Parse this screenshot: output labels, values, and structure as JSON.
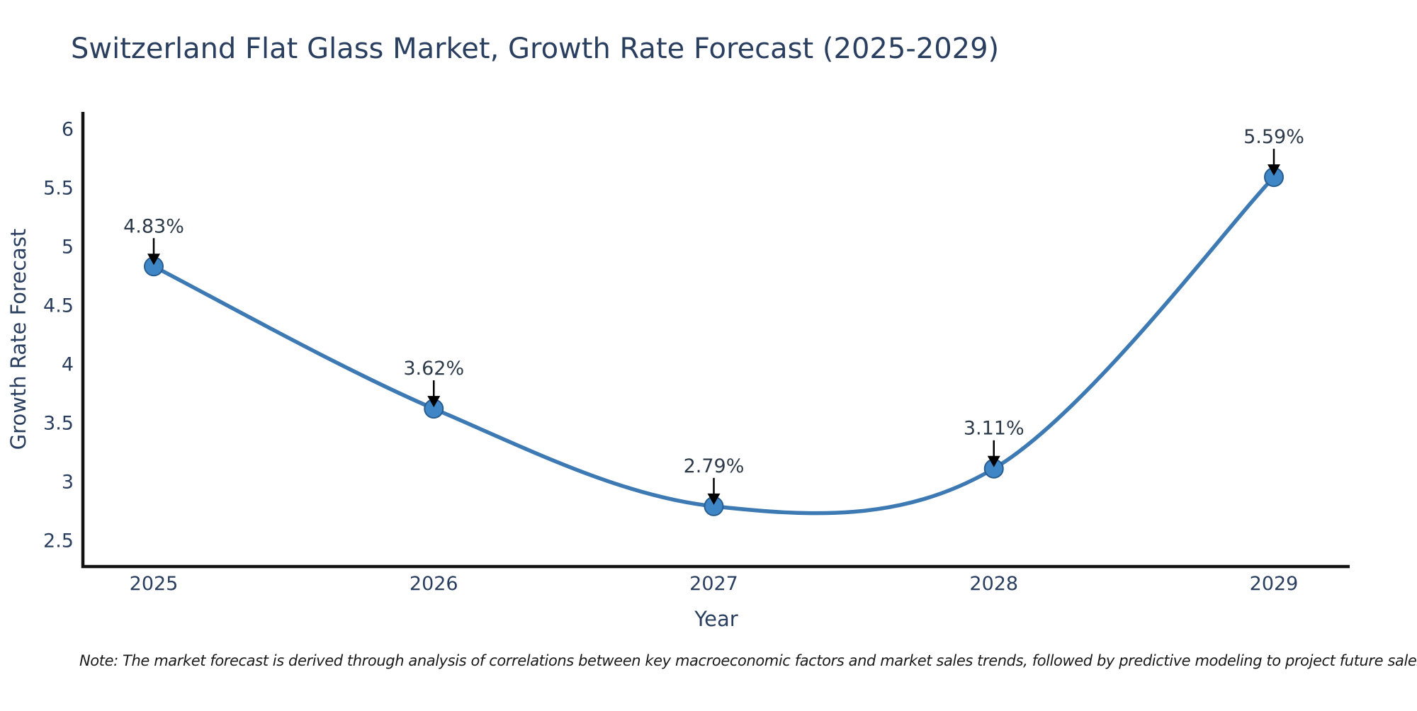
{
  "chart_data": {
    "type": "line",
    "title": "Switzerland Flat Glass Market, Growth Rate Forecast (2025-2029)",
    "xlabel": "Year",
    "ylabel": "Growth Rate Forecast",
    "categories": [
      "2025",
      "2026",
      "2027",
      "2028",
      "2029"
    ],
    "series": [
      {
        "name": "Growth Rate Forecast",
        "values": [
          4.83,
          3.62,
          2.79,
          3.11,
          5.59
        ]
      }
    ],
    "point_labels": [
      "4.83%",
      "3.62%",
      "2.79%",
      "3.11%",
      "5.59%"
    ],
    "ytick_labels": [
      "2.5",
      "3",
      "3.5",
      "4",
      "4.5",
      "5",
      "5.5",
      "6"
    ],
    "yticks": [
      2.5,
      3,
      3.5,
      4,
      4.5,
      5,
      5.5,
      6
    ],
    "ylim": [
      2.277,
      6.145
    ],
    "grid": false,
    "legend": "none",
    "line_style": "smooth-spline",
    "marker": "circle",
    "annotations": "value labels with downward arrows above each point",
    "colors": {
      "line": "#3d7ab3",
      "marker_fill": "#3f86c6",
      "marker_edge": "#2a5d8f",
      "axis": "#111111",
      "tick_text": "#2a3f5f",
      "title_text": "#2a3f5f",
      "annotation_text": "#2d3a4a",
      "annotation_arrow": "#000000",
      "note_text": "#1a1a1a"
    }
  },
  "note": {
    "text": "Note: The market forecast is derived through analysis of correlations between key macroeconomic factors and market sales trends, followed by predictive modeling to project future sales"
  }
}
